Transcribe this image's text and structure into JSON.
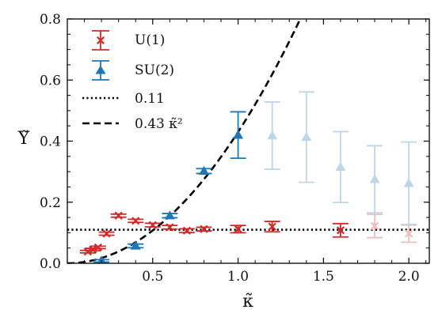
{
  "chart_data": {
    "type": "scatter",
    "xlabel": "κ̃",
    "ylabel": "Υ̃",
    "xlim": [
      0,
      2.12
    ],
    "ylim": [
      0,
      0.8
    ],
    "xticks": [
      0.5,
      1.0,
      1.5,
      2.0
    ],
    "xtick_labels": [
      "0.5",
      "1.0",
      "1.5",
      "2.0"
    ],
    "yticks": [
      0.0,
      0.2,
      0.4,
      0.6,
      0.8
    ],
    "ytick_labels": [
      "0.0",
      "0.2",
      "0.4",
      "0.6",
      "0.8"
    ],
    "grid": false,
    "legend_position": "top-left",
    "series": [
      {
        "name": "U(1)",
        "marker": "x",
        "color": "#d62728",
        "points": [
          {
            "x": 0.12,
            "y": 0.038,
            "err": 0.004,
            "faded": false
          },
          {
            "x": 0.15,
            "y": 0.045,
            "err": 0.004,
            "faded": false
          },
          {
            "x": 0.18,
            "y": 0.052,
            "err": 0.004,
            "faded": false
          },
          {
            "x": 0.23,
            "y": 0.097,
            "err": 0.005,
            "faded": false
          },
          {
            "x": 0.3,
            "y": 0.156,
            "err": 0.005,
            "faded": false
          },
          {
            "x": 0.4,
            "y": 0.139,
            "err": 0.005,
            "faded": false
          },
          {
            "x": 0.5,
            "y": 0.125,
            "err": 0.006,
            "faded": false
          },
          {
            "x": 0.6,
            "y": 0.118,
            "err": 0.006,
            "faded": false
          },
          {
            "x": 0.7,
            "y": 0.107,
            "err": 0.006,
            "faded": false
          },
          {
            "x": 0.8,
            "y": 0.112,
            "err": 0.006,
            "faded": false
          },
          {
            "x": 1.0,
            "y": 0.112,
            "err": 0.012,
            "faded": false
          },
          {
            "x": 1.2,
            "y": 0.12,
            "err": 0.017,
            "faded": false
          },
          {
            "x": 1.6,
            "y": 0.108,
            "err": 0.022,
            "faded": false
          },
          {
            "x": 1.8,
            "y": 0.122,
            "err": 0.038,
            "faded": true
          },
          {
            "x": 2.0,
            "y": 0.097,
            "err": 0.028,
            "faded": true
          }
        ]
      },
      {
        "name": "SU(2)",
        "marker": "triangle",
        "color": "#1f77b4",
        "points": [
          {
            "x": 0.2,
            "y": 0.008,
            "err": 0.004,
            "faded": false
          },
          {
            "x": 0.4,
            "y": 0.057,
            "err": 0.006,
            "faded": false
          },
          {
            "x": 0.6,
            "y": 0.156,
            "err": 0.007,
            "faded": false
          },
          {
            "x": 0.8,
            "y": 0.302,
            "err": 0.008,
            "faded": false
          },
          {
            "x": 1.0,
            "y": 0.42,
            "err": 0.076,
            "faded": false
          },
          {
            "x": 1.2,
            "y": 0.418,
            "err": 0.11,
            "faded": true
          },
          {
            "x": 1.4,
            "y": 0.413,
            "err": 0.148,
            "faded": true
          },
          {
            "x": 1.6,
            "y": 0.315,
            "err": 0.116,
            "faded": true
          },
          {
            "x": 1.8,
            "y": 0.275,
            "err": 0.11,
            "faded": true
          },
          {
            "x": 2.0,
            "y": 0.262,
            "err": 0.135,
            "faded": true
          }
        ]
      }
    ],
    "lines": [
      {
        "name": "0.11",
        "style": "dotted",
        "color": "#000000",
        "kind": "constant",
        "value": 0.11
      },
      {
        "name": "0.43 κ̃²",
        "style": "dashed",
        "color": "#000000",
        "kind": "quadratic",
        "coefficient": 0.43
      }
    ]
  }
}
